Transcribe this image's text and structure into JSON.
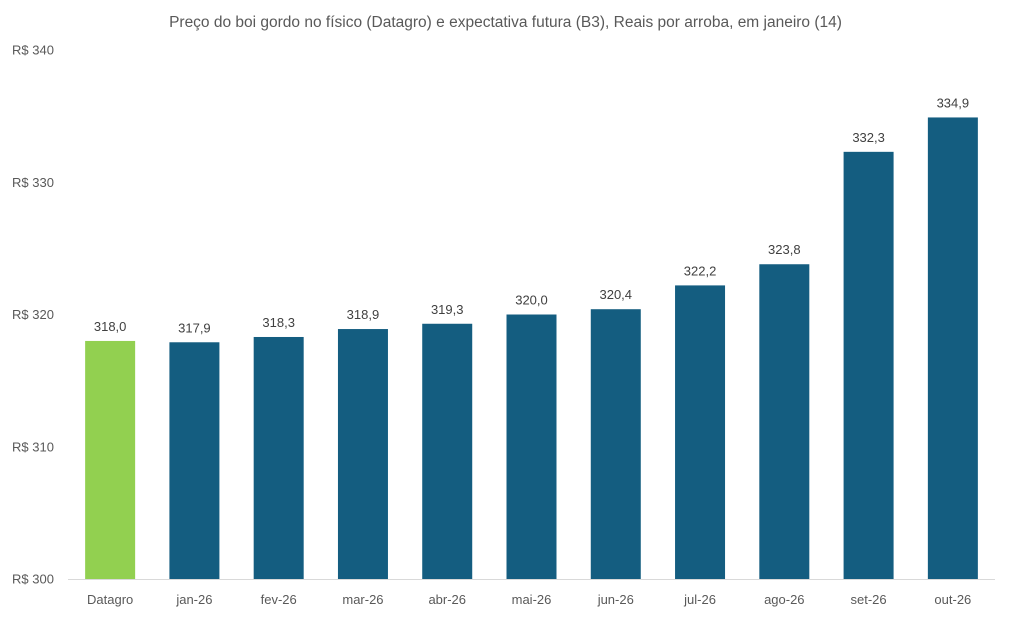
{
  "chart_data": {
    "type": "bar",
    "title": "Preço do boi gordo no físico (Datagro)  e expectativa futura (B3), Reais por arroba, em janeiro (14)",
    "xlabel": "",
    "ylabel": "",
    "categories": [
      "Datagro",
      "jan-26",
      "fev-26",
      "mar-26",
      "abr-26",
      "mai-26",
      "jun-26",
      "jul-26",
      "ago-26",
      "set-26",
      "out-26"
    ],
    "values": [
      318.0,
      317.9,
      318.3,
      318.9,
      319.3,
      320.0,
      320.4,
      322.2,
      323.8,
      332.3,
      334.9
    ],
    "value_labels": [
      "318,0",
      "317,9",
      "318,3",
      "318,9",
      "319,3",
      "320,0",
      "320,4",
      "322,2",
      "323,8",
      "332,3",
      "334,9"
    ],
    "bar_colors": [
      "#92d050",
      "#145d80",
      "#145d80",
      "#145d80",
      "#145d80",
      "#145d80",
      "#145d80",
      "#145d80",
      "#145d80",
      "#145d80",
      "#145d80"
    ],
    "ylim": [
      300,
      340
    ],
    "yticks": [
      300,
      310,
      320,
      330,
      340
    ],
    "ytick_labels": [
      "R$ 300",
      "R$ 310",
      "R$ 320",
      "R$ 330",
      "R$ 340"
    ],
    "grid": false,
    "legend": "none",
    "axis_color": "#d9d9d9",
    "text_color": "#595959"
  }
}
